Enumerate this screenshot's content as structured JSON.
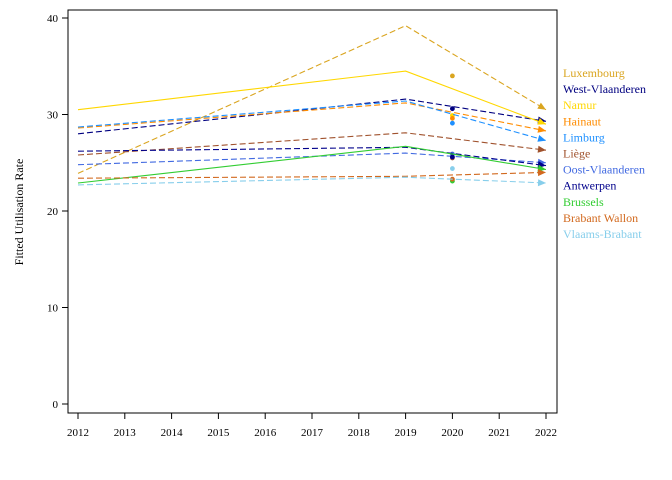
{
  "chart_data": {
    "type": "line",
    "ylabel": "Fitted Utilisation Rate",
    "xlabel": "",
    "title": "",
    "x": [
      2012,
      2013,
      2014,
      2015,
      2016,
      2017,
      2018,
      2019,
      2020,
      2021,
      2022
    ],
    "xlim": [
      2012,
      2022
    ],
    "ylim": [
      0,
      40
    ],
    "yticks": [
      0,
      10,
      20,
      30,
      40
    ],
    "grid": false,
    "legend_position": "right",
    "series": [
      {
        "name": "Luxembourg",
        "color": "#DAA520",
        "line_x": [
          2012,
          2019,
          2022
        ],
        "line_y": [
          23.9,
          39.2,
          30.5
        ],
        "dash": true,
        "point_2020": 34.0
      },
      {
        "name": "West-Vlaanderen",
        "color": "#000080",
        "line_x": [
          2012,
          2019,
          2022
        ],
        "line_y": [
          28.0,
          31.6,
          29.3
        ],
        "dash": true,
        "point_2020": 30.6
      },
      {
        "name": "Namur",
        "color": "#FFD700",
        "line_x": [
          2012,
          2019,
          2022
        ],
        "line_y": [
          30.5,
          34.5,
          29.0
        ],
        "dash": false,
        "point_2020": 29.9
      },
      {
        "name": "Hainaut",
        "color": "#FF8C00",
        "line_x": [
          2012,
          2019,
          2022
        ],
        "line_y": [
          28.6,
          31.2,
          28.3
        ],
        "dash": true,
        "point_2020": 29.6
      },
      {
        "name": "Limburg",
        "color": "#1E90FF",
        "line_x": [
          2012,
          2019,
          2022
        ],
        "line_y": [
          28.7,
          31.4,
          27.3
        ],
        "dash": true,
        "point_2020": 29.1
      },
      {
        "name": "Liège",
        "color": "#A0522D",
        "line_x": [
          2012,
          2019,
          2022
        ],
        "line_y": [
          25.8,
          28.1,
          26.3
        ],
        "dash": true,
        "point_2020": 25.5
      },
      {
        "name": "Oost-Vlaanderen",
        "color": "#4169E1",
        "line_x": [
          2012,
          2019,
          2022
        ],
        "line_y": [
          24.8,
          26.0,
          25.0
        ],
        "dash": true,
        "point_2020": 25.9
      },
      {
        "name": "Antwerpen",
        "color": "#00008B",
        "line_x": [
          2012,
          2019,
          2022
        ],
        "line_y": [
          26.2,
          26.6,
          24.7
        ],
        "dash": true,
        "point_2020": 25.6
      },
      {
        "name": "Brussels",
        "color": "#32CD32",
        "line_x": [
          2012,
          2019,
          2022
        ],
        "line_y": [
          22.9,
          26.7,
          24.3
        ],
        "dash": false,
        "point_2020": 23.1
      },
      {
        "name": "Brabant Wallon",
        "color": "#D2691E",
        "line_x": [
          2012,
          2019,
          2022
        ],
        "line_y": [
          23.4,
          23.6,
          24.0
        ],
        "dash": true,
        "point_2020": 23.3
      },
      {
        "name": "Vlaams-Brabant",
        "color": "#87CEEB",
        "line_x": [
          2012,
          2019,
          2022
        ],
        "line_y": [
          22.7,
          23.5,
          22.9
        ],
        "dash": true,
        "point_2020": 24.4
      }
    ]
  }
}
